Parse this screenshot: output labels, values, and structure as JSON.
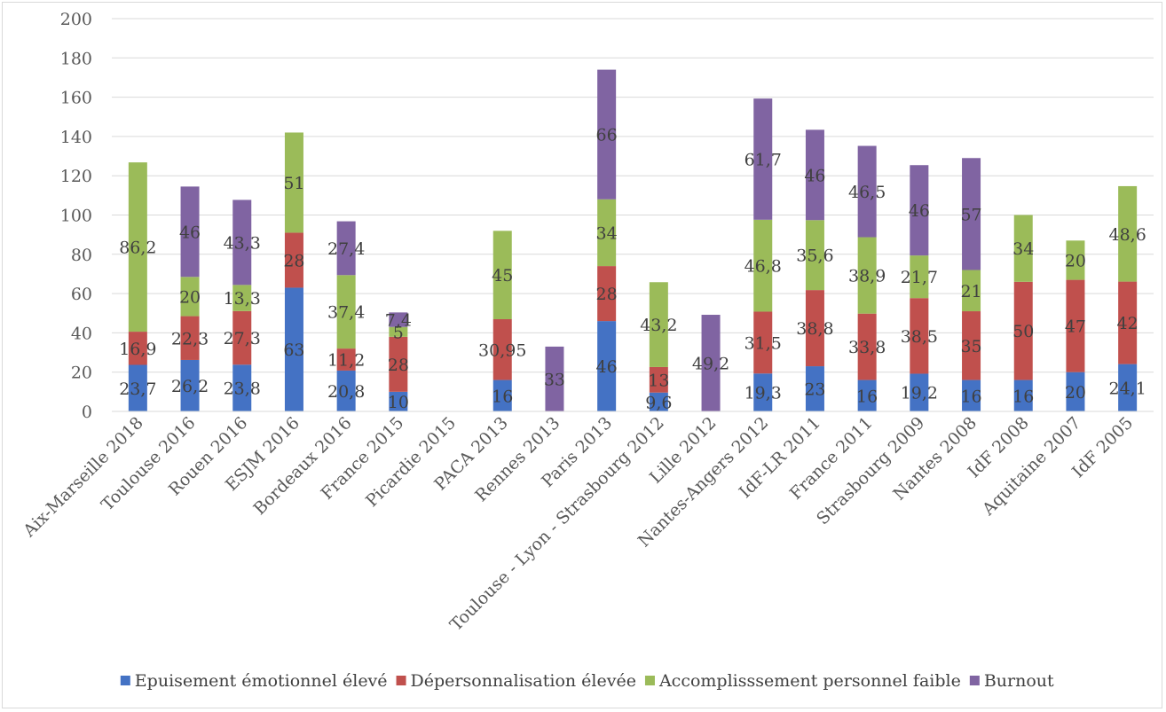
{
  "chart_data": {
    "type": "bar",
    "stacked": true,
    "categories": [
      "Aix-Marseille 2018",
      "Toulouse 2016",
      "Rouen 2016",
      "ESJM 2016",
      "Bordeaux 2016",
      "France 2015",
      "Picardie 2015",
      "PACA 2013",
      "Rennes 2013",
      "Paris 2013",
      "Toulouse - Lyon - Strasbourg 2012",
      "Lille 2012",
      "Nantes-Angers 2012",
      "IdF-LR 2011",
      "France 2011",
      "Strasbourg 2009",
      "Nantes 2008",
      "IdF 2008",
      "Aquitaine 2007",
      "IdF 2005"
    ],
    "series": [
      {
        "name": "Epuisement émotionnel élevé",
        "color": "#4472c4",
        "values": [
          23.7,
          26.2,
          23.8,
          63,
          20.8,
          10,
          null,
          16,
          null,
          46,
          9.6,
          null,
          19.3,
          23,
          16,
          19.2,
          16,
          16,
          20,
          24.1
        ],
        "labels": [
          "23,7",
          "26,2",
          "23,8",
          "63",
          "20,8",
          "10",
          "",
          "16",
          "",
          "46",
          "9,6",
          "",
          "19,3",
          "23",
          "16",
          "19,2",
          "16",
          "16",
          "20",
          "24,1"
        ]
      },
      {
        "name": "Dépersonnalisation élevée",
        "color": "#c0504d",
        "values": [
          16.9,
          22.3,
          27.3,
          28,
          11.2,
          28,
          null,
          30.95,
          null,
          28,
          13,
          null,
          31.5,
          38.8,
          33.8,
          38.5,
          35,
          50,
          47,
          42
        ],
        "labels": [
          "16,9",
          "22,3",
          "27,3",
          "28",
          "11,2",
          "28",
          "",
          "30,95",
          "",
          "28",
          "13",
          "",
          "31,5",
          "38,8",
          "33,8",
          "38,5",
          "35",
          "50",
          "47",
          "42"
        ]
      },
      {
        "name": "Accomplisssement personnel faible",
        "color": "#9bbb59",
        "values": [
          86.2,
          20,
          13.3,
          51,
          37.4,
          5,
          null,
          45,
          null,
          34,
          43.2,
          null,
          46.8,
          35.6,
          38.9,
          21.7,
          21,
          34,
          20,
          48.6
        ],
        "labels": [
          "86,2",
          "20",
          "13,3",
          "51",
          "37,4",
          "5",
          "",
          "45",
          "",
          "34",
          "43,2",
          "",
          "46,8",
          "35,6",
          "38,9",
          "21,7",
          "21",
          "34",
          "20",
          "48,6"
        ]
      },
      {
        "name": "Burnout",
        "color": "#8064a2",
        "values": [
          null,
          46,
          43.3,
          null,
          27.4,
          7.4,
          null,
          null,
          33,
          66,
          null,
          49.2,
          61.7,
          46,
          46.5,
          46,
          57,
          null,
          null,
          null
        ],
        "labels": [
          "",
          "46",
          "43,3",
          "",
          "27,4",
          "7,4",
          "",
          "",
          "33",
          "66",
          "",
          "49,2",
          "61,7",
          "46",
          "46,5",
          "46",
          "57",
          "",
          "",
          ""
        ]
      }
    ],
    "y_ticks": [
      "0",
      "20",
      "40",
      "60",
      "80",
      "100",
      "120",
      "140",
      "160",
      "180",
      "200"
    ],
    "ylim": [
      0,
      200
    ],
    "grid": true,
    "legend_position": "bottom"
  }
}
